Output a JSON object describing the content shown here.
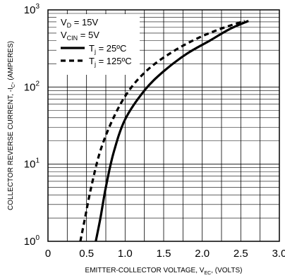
{
  "chart_data": {
    "type": "line",
    "title": "",
    "xlabel": {
      "prefix": "EMITTER-COLLECTOR VOLTAGE, V",
      "sub": "EC",
      "suffix": ", (VOLTS)"
    },
    "ylabel": {
      "prefix": "COLLECTOR REVERSE CURRENT, -I",
      "sub": "C",
      "suffix": ", (AMPERES)"
    },
    "xlim": [
      0,
      3.0
    ],
    "ylim": [
      1,
      1000
    ],
    "yscale": "log",
    "grid": true,
    "x_ticks": [
      "0",
      "0.5",
      "1.0",
      "1.5",
      "2.0",
      "2.5",
      "3.0"
    ],
    "y_ticks": [
      {
        "base": "10",
        "exp": "0"
      },
      {
        "base": "10",
        "exp": "1"
      },
      {
        "base": "10",
        "exp": "2"
      },
      {
        "base": "10",
        "exp": "3"
      }
    ],
    "conditions": [
      {
        "main": "V",
        "sub": "D",
        "rest": " = 15V"
      },
      {
        "main": "V",
        "sub": "CIN",
        "rest": " = 5V"
      }
    ],
    "legend_position": "top-left",
    "series": [
      {
        "name": {
          "main": "T",
          "sub": "j",
          "rest": " = 25ºC"
        },
        "style": "solid",
        "x": [
          0.62,
          0.68,
          0.75,
          0.85,
          1.0,
          1.25,
          1.5,
          1.8,
          2.1,
          2.35,
          2.6
        ],
        "y": [
          1,
          2,
          5,
          14,
          38,
          90,
          160,
          270,
          400,
          560,
          720
        ]
      },
      {
        "name": {
          "main": "T",
          "sub": "j",
          "rest": " = 125ºC"
        },
        "style": "dashed",
        "x": [
          0.42,
          0.48,
          0.56,
          0.68,
          0.85,
          1.05,
          1.3,
          1.6,
          1.9,
          2.2,
          2.55
        ],
        "y": [
          1,
          2,
          5,
          15,
          40,
          90,
          170,
          280,
          410,
          550,
          720
        ]
      }
    ]
  }
}
